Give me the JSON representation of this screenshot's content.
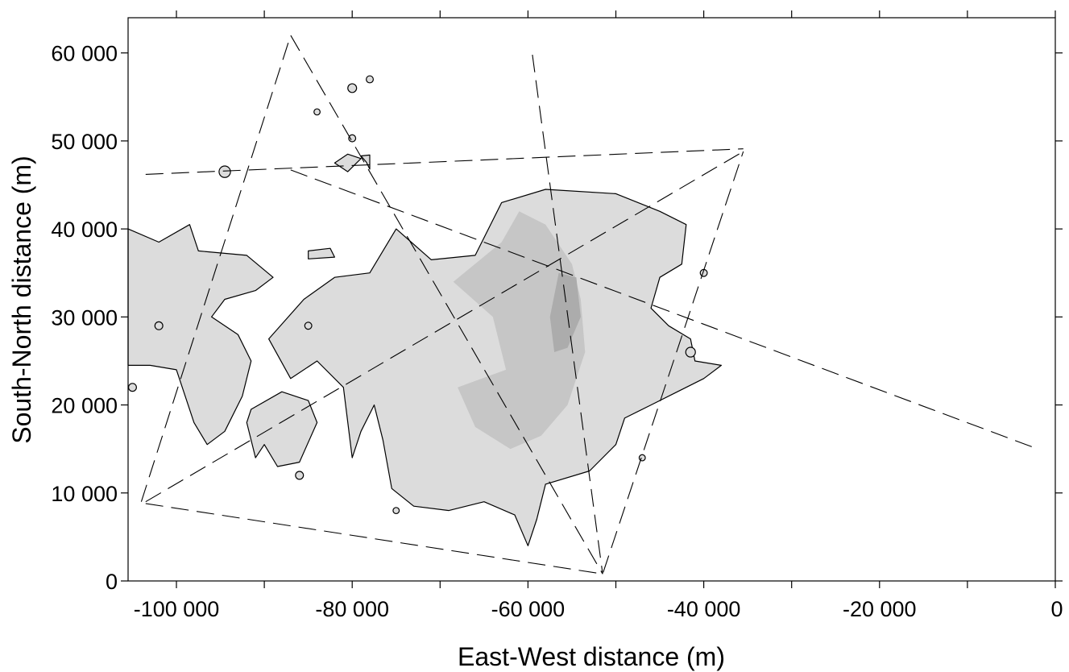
{
  "chart_data": {
    "type": "contour",
    "xlabel": "East-West distance (m)",
    "ylabel": "South-North distance (m)",
    "xlim": [
      -105500,
      0
    ],
    "ylim": [
      0,
      64000
    ],
    "x_ticks": [
      -100000,
      -80000,
      -60000,
      -40000,
      -20000,
      0
    ],
    "x_tick_labels": [
      "-100 000",
      "-80 000",
      "-60 000",
      "-40 000",
      "-20 000",
      "0"
    ],
    "y_ticks": [
      0,
      10000,
      20000,
      30000,
      40000,
      50000,
      60000
    ],
    "y_tick_labels": [
      "0",
      "10 000",
      "20 000",
      "30 000",
      "40 000",
      "50 000",
      "60 000"
    ],
    "grid": false,
    "colors": {
      "region_light": "#dcdcdc",
      "region_medium": "#c6c6c6",
      "region_dark": "#acacac",
      "outline": "#000000",
      "dashed": "#000000"
    },
    "contour_regions": [
      {
        "level": "light",
        "outlined": true,
        "points": [
          [
            -66000,
            37000
          ],
          [
            -63000,
            43000
          ],
          [
            -58000,
            44500
          ],
          [
            -50000,
            44000
          ],
          [
            -45000,
            42000
          ],
          [
            -42000,
            40500
          ],
          [
            -42500,
            36000
          ],
          [
            -45000,
            34500
          ],
          [
            -46000,
            31000
          ],
          [
            -44000,
            29000
          ],
          [
            -41500,
            27500
          ],
          [
            -41000,
            25000
          ],
          [
            -38000,
            24500
          ],
          [
            -40000,
            23000
          ],
          [
            -43000,
            21500
          ],
          [
            -46000,
            20000
          ],
          [
            -49000,
            18500
          ],
          [
            -50000,
            15500
          ],
          [
            -53000,
            12500
          ],
          [
            -58000,
            11000
          ],
          [
            -59000,
            7000
          ],
          [
            -60000,
            4000
          ],
          [
            -61500,
            7500
          ],
          [
            -65000,
            9000
          ],
          [
            -69000,
            8000
          ],
          [
            -73000,
            8500
          ],
          [
            -75500,
            10500
          ],
          [
            -76500,
            16000
          ],
          [
            -77500,
            20000
          ],
          [
            -79000,
            17000
          ],
          [
            -80000,
            14000
          ],
          [
            -81000,
            22000
          ],
          [
            -84000,
            25000
          ],
          [
            -87000,
            23000
          ],
          [
            -89500,
            27500
          ],
          [
            -85500,
            32000
          ],
          [
            -82000,
            34500
          ],
          [
            -78000,
            35000
          ],
          [
            -75000,
            40000
          ],
          [
            -71000,
            36500
          ]
        ]
      },
      {
        "level": "light",
        "outlined": true,
        "points": [
          [
            -105500,
            40000
          ],
          [
            -102000,
            38500
          ],
          [
            -98500,
            40500
          ],
          [
            -97500,
            37500
          ],
          [
            -92000,
            37000
          ],
          [
            -89000,
            34500
          ],
          [
            -91000,
            33000
          ],
          [
            -94500,
            32000
          ],
          [
            -96000,
            30000
          ],
          [
            -93000,
            28000
          ],
          [
            -91500,
            25000
          ],
          [
            -92500,
            21000
          ],
          [
            -94500,
            17000
          ],
          [
            -96500,
            15500
          ],
          [
            -98000,
            18000
          ],
          [
            -100000,
            24000
          ],
          [
            -103000,
            24500
          ],
          [
            -105500,
            24500
          ]
        ]
      },
      {
        "level": "light",
        "outlined": true,
        "points": [
          [
            -91500,
            19500
          ],
          [
            -88000,
            21500
          ],
          [
            -85000,
            20500
          ],
          [
            -84000,
            18000
          ],
          [
            -86000,
            13500
          ],
          [
            -88500,
            13000
          ],
          [
            -90000,
            15500
          ],
          [
            -91000,
            14000
          ],
          [
            -92000,
            18000
          ]
        ]
      },
      {
        "level": "medium",
        "outlined": false,
        "points": [
          [
            -63000,
            38500
          ],
          [
            -61000,
            42000
          ],
          [
            -58000,
            40500
          ],
          [
            -55000,
            36000
          ],
          [
            -54000,
            32000
          ],
          [
            -53500,
            26000
          ],
          [
            -55500,
            20000
          ],
          [
            -58500,
            16500
          ],
          [
            -62000,
            15000
          ],
          [
            -66000,
            17500
          ],
          [
            -68000,
            22000
          ],
          [
            -62500,
            24000
          ],
          [
            -64000,
            30000
          ],
          [
            -68500,
            34000
          ]
        ]
      },
      {
        "level": "dark",
        "outlined": false,
        "points": [
          [
            -56500,
            35000
          ],
          [
            -54500,
            34500
          ],
          [
            -54000,
            30000
          ],
          [
            -55500,
            26500
          ],
          [
            -57000,
            26000
          ],
          [
            -57500,
            30000
          ]
        ]
      },
      {
        "level": "light",
        "outlined": true,
        "points": [
          [
            -82000,
            47500
          ],
          [
            -80500,
            48500
          ],
          [
            -79000,
            48000
          ],
          [
            -80500,
            46500
          ]
        ]
      },
      {
        "level": "light",
        "outlined": true,
        "points": [
          [
            -85000,
            37500
          ],
          [
            -82500,
            37800
          ],
          [
            -82000,
            36800
          ],
          [
            -85000,
            36600
          ]
        ]
      },
      {
        "level": "light",
        "outlined": true,
        "points": [
          [
            -78000,
            46800
          ],
          [
            -78400,
            47600
          ],
          [
            -79000,
            48300
          ],
          [
            -78000,
            48400
          ]
        ]
      }
    ],
    "contour_blobs": [
      {
        "x": -94500,
        "y": 46500,
        "r": 650
      },
      {
        "x": -80000,
        "y": 56000,
        "r": 500
      },
      {
        "x": -78000,
        "y": 57000,
        "r": 400
      },
      {
        "x": -80000,
        "y": 50300,
        "r": 400
      },
      {
        "x": -84000,
        "y": 53300,
        "r": 350
      },
      {
        "x": -41500,
        "y": 26000,
        "r": 550
      },
      {
        "x": -40000,
        "y": 35000,
        "r": 400
      },
      {
        "x": -86000,
        "y": 12000,
        "r": 450
      },
      {
        "x": -75000,
        "y": 8000,
        "r": 350
      },
      {
        "x": -47000,
        "y": 14000,
        "r": 350
      },
      {
        "x": -105000,
        "y": 22000,
        "r": 450
      },
      {
        "x": -102000,
        "y": 29000,
        "r": 450
      },
      {
        "x": -85000,
        "y": 29000,
        "r": 400
      }
    ],
    "dashed_paths": [
      [
        [
          -104000,
          9000
        ],
        [
          -87000,
          62000
        ],
        [
          -51500,
          800
        ]
      ],
      [
        [
          -103500,
          9000
        ],
        [
          -35500,
          48800
        ]
      ],
      [
        [
          -103500,
          8800
        ],
        [
          -51500,
          800
        ],
        [
          -35500,
          48800
        ]
      ],
      [
        [
          -103500,
          46200
        ],
        [
          -35500,
          49100
        ]
      ],
      [
        [
          -87000,
          46700
        ],
        [
          -2000,
          15000
        ]
      ],
      [
        [
          -59500,
          59800
        ],
        [
          -51500,
          800
        ]
      ]
    ]
  }
}
